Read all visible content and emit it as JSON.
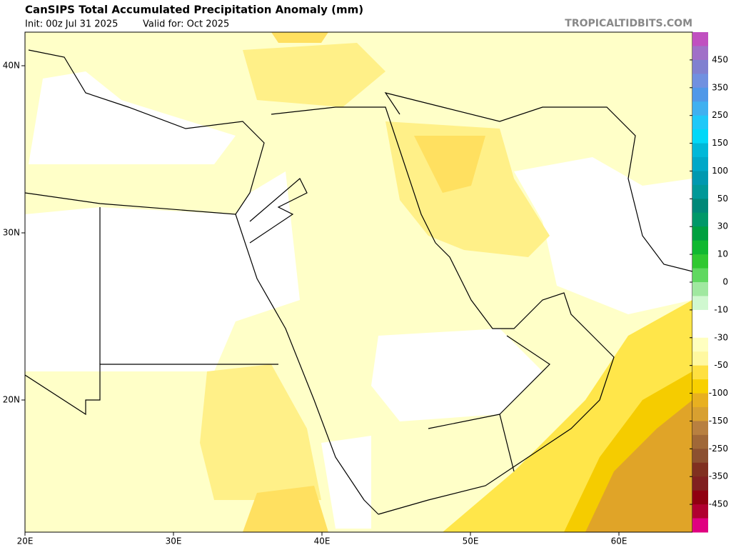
{
  "header": {
    "title": "CanSIPS Total Accumulated Precipitation Anomaly (mm)",
    "init": "Init: 00z Jul 31 2025",
    "valid": "Valid for: Oct 2025",
    "source": "TROPICALTIDBITS.COM"
  },
  "map": {
    "lat_ticks": [
      {
        "value": 40,
        "label": "40N"
      },
      {
        "value": 30,
        "label": "30N"
      },
      {
        "value": 20,
        "label": "20N"
      }
    ],
    "lon_ticks": [
      {
        "value": 20,
        "label": "20E"
      },
      {
        "value": 30,
        "label": "30E"
      },
      {
        "value": 40,
        "label": "40E"
      },
      {
        "value": 50,
        "label": "50E"
      },
      {
        "value": 60,
        "label": "60E"
      }
    ]
  },
  "colorbar": {
    "labels": [
      450,
      350,
      250,
      150,
      100,
      50,
      30,
      10,
      0,
      -10,
      -30,
      -50,
      -100,
      -150,
      -250,
      -350,
      -450
    ],
    "colors": [
      "#c050c0",
      "#a070c8",
      "#8080d0",
      "#7090e0",
      "#5098e8",
      "#40b0f0",
      "#20c8f8",
      "#00d8f8",
      "#00b8d8",
      "#00a8c8",
      "#0098b0",
      "#009898",
      "#008878",
      "#009868",
      "#00a040",
      "#10b830",
      "#30c830",
      "#60d860",
      "#a0e8a0",
      "#d0f8d0",
      "#ffffff",
      "#ffffff",
      "#ffffc0",
      "#fff8a0",
      "#ffe040",
      "#f8d000",
      "#e8b020",
      "#d8a030",
      "#b88040",
      "#a06838",
      "#8c5030",
      "#803020",
      "#802020",
      "#900010",
      "#b00030",
      "#e00080"
    ]
  }
}
